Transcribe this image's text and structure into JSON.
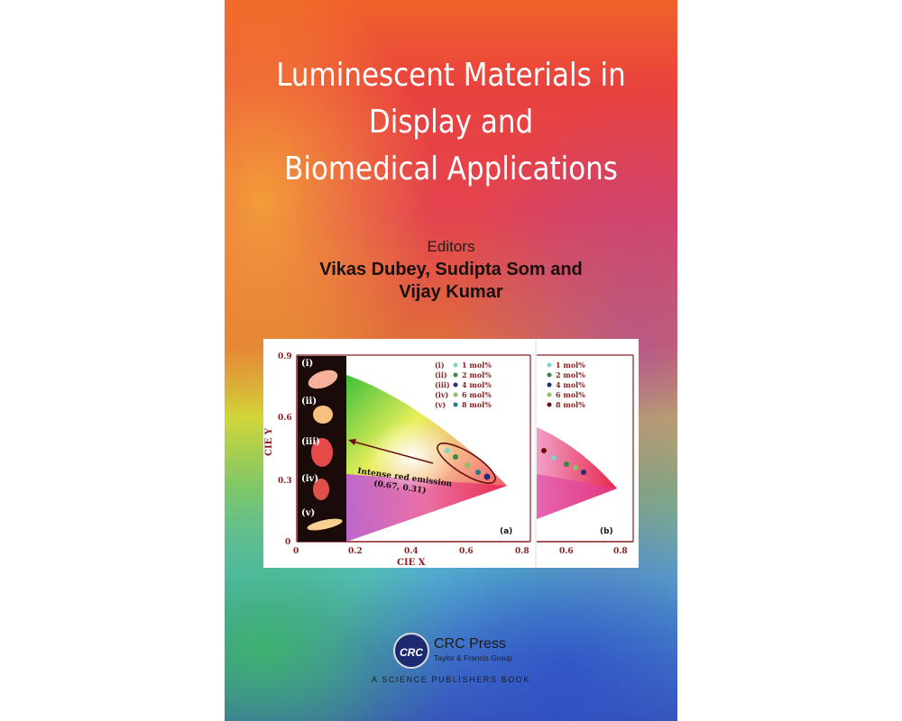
{
  "book": {
    "title_lines": [
      "Luminescent Materials in",
      "Display and",
      "Biomedical Applications"
    ],
    "editors_label": "Editors",
    "editor_lines": [
      "Vikas Dubey, Sudipta Som and",
      "Vijay Kumar"
    ],
    "publisher_logo_text": "CRC",
    "publisher_name": "CRC Press",
    "publisher_group": "Taylor & Francis Group",
    "series_text": "A SCIENCE PUBLISHERS BOOK"
  },
  "figure": {
    "panel_a": {
      "label": "(a)",
      "y_axis_label": "CIE Y",
      "x_axis_label": "CIE X",
      "y_ticks": [
        "0.9",
        "0.6",
        "0.3",
        "0"
      ],
      "x_ticks": [
        "0",
        "0.2",
        "0.4",
        "0.6",
        "0.8"
      ],
      "inset_labels": [
        "(i)",
        "(ii)",
        "(iii)",
        "(iv)",
        "(v)"
      ],
      "annotation_line1": "Intense red emission",
      "annotation_line2": "(0.67, 0.31)",
      "legend": [
        {
          "roman": "(i)",
          "label": "1 mol%",
          "color": "#7fd3c8"
        },
        {
          "roman": "(ii)",
          "label": "2 mol%",
          "color": "#3a8a4a"
        },
        {
          "roman": "(iii)",
          "label": "4 mol%",
          "color": "#2a2a7a"
        },
        {
          "roman": "(iv)",
          "label": "6 mol%",
          "color": "#8fc060"
        },
        {
          "roman": "(v)",
          "label": "8 mol%",
          "color": "#1f7f86"
        }
      ]
    },
    "panel_b": {
      "label": "(b)",
      "x_ticks": [
        "0.6",
        "0.8"
      ],
      "legend": [
        {
          "label": "1 mol%",
          "color": "#7fd3c8"
        },
        {
          "label": "2 mol%",
          "color": "#2f8a4a"
        },
        {
          "label": "4 mol%",
          "color": "#2a2a7a"
        },
        {
          "label": "6 mol%",
          "color": "#8fc060"
        },
        {
          "label": "8 mol%",
          "color": "#6a1010"
        }
      ]
    }
  },
  "colors": {
    "title": "#ffffff",
    "figure_axis": "#8a1f1f",
    "crc_logo": "#1d2a72"
  }
}
